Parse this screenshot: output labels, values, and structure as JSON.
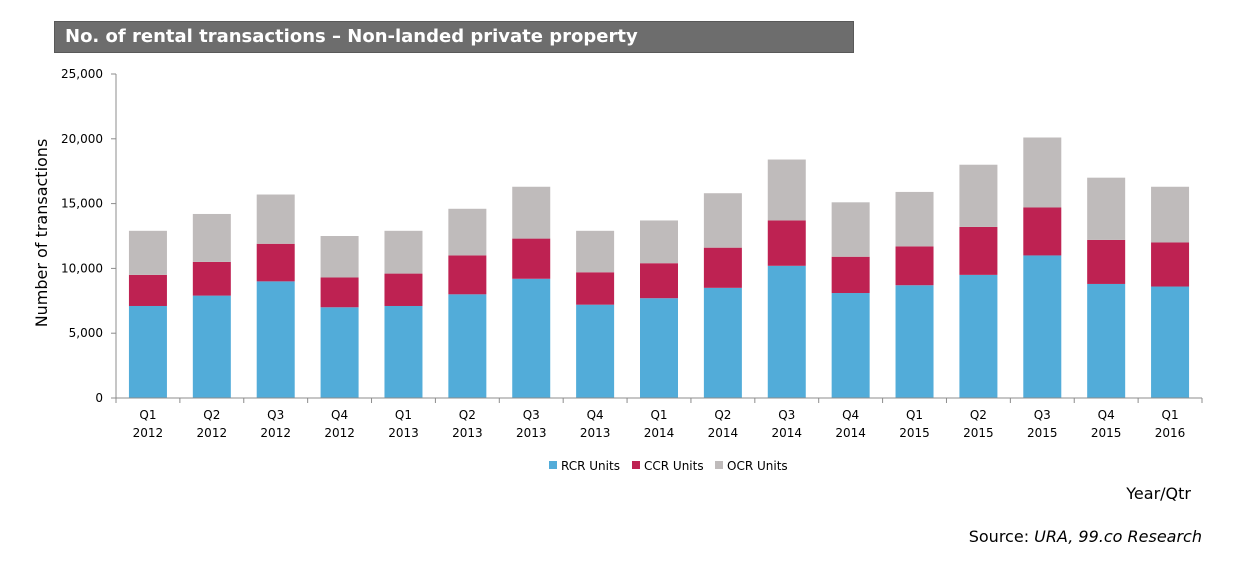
{
  "title": "No. of rental transactions – Non-landed private property",
  "source": {
    "label": "Source: ",
    "text": "URA, 99.co Research"
  },
  "chart_data": {
    "type": "bar",
    "stacked": true,
    "title": "No. of rental transactions – Non-landed private property",
    "ylabel": "Number of transactions",
    "xlabel": "Year/Qtr",
    "ylim": [
      0,
      25000
    ],
    "yticks": [
      0,
      5000,
      10000,
      15000,
      20000,
      25000
    ],
    "ytick_labels": [
      "0",
      "5,000",
      "10,000",
      "15,000",
      "20,000",
      "25,000"
    ],
    "grid": false,
    "legend_position": "bottom",
    "categories": [
      [
        "Q1",
        "2012"
      ],
      [
        "Q2",
        "2012"
      ],
      [
        "Q3",
        "2012"
      ],
      [
        "Q4",
        "2012"
      ],
      [
        "Q1",
        "2013"
      ],
      [
        "Q2",
        "2013"
      ],
      [
        "Q3",
        "2013"
      ],
      [
        "Q4",
        "2013"
      ],
      [
        "Q1",
        "2014"
      ],
      [
        "Q2",
        "2014"
      ],
      [
        "Q3",
        "2014"
      ],
      [
        "Q4",
        "2014"
      ],
      [
        "Q1",
        "2015"
      ],
      [
        "Q2",
        "2015"
      ],
      [
        "Q3",
        "2015"
      ],
      [
        "Q4",
        "2015"
      ],
      [
        "Q1",
        "2016"
      ]
    ],
    "series": [
      {
        "name": "RCR Units",
        "color": "#52acd9",
        "values": [
          7100,
          7900,
          9000,
          7000,
          7100,
          8000,
          9200,
          7200,
          7700,
          8500,
          10200,
          8100,
          8700,
          9500,
          11000,
          8800,
          8600
        ]
      },
      {
        "name": "CCR Units",
        "color": "#be2252",
        "values": [
          2400,
          2600,
          2900,
          2300,
          2500,
          3000,
          3100,
          2500,
          2700,
          3100,
          3500,
          2800,
          3000,
          3700,
          3700,
          3400,
          3400
        ]
      },
      {
        "name": "OCR Units",
        "color": "#bfbbbb",
        "values": [
          3400,
          3700,
          3800,
          3200,
          3300,
          3600,
          4000,
          3200,
          3300,
          4200,
          4700,
          4200,
          4200,
          4800,
          5400,
          4800,
          4300
        ]
      }
    ]
  }
}
